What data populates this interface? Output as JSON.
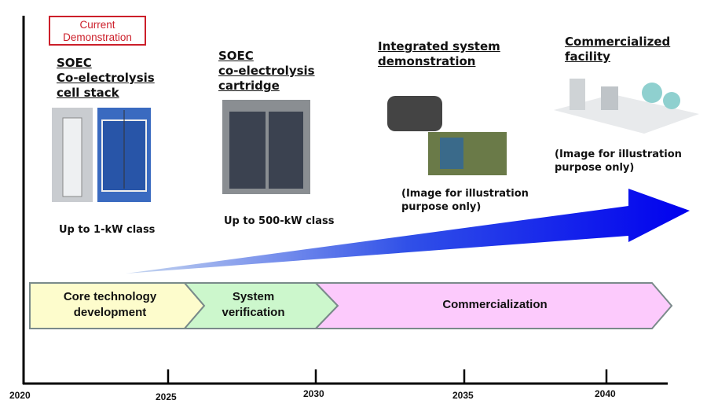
{
  "badge": "Current Demonstration",
  "stages": [
    {
      "title_lines": [
        "SOEC",
        "Co-electrolysis",
        "cell stack"
      ],
      "caption": "Up to 1-kW class"
    },
    {
      "title_lines": [
        "SOEC",
        "co-electrolysis",
        "cartridge"
      ],
      "caption": "Up to 500-kW class"
    },
    {
      "title_lines": [
        "Integrated system",
        "demonstration"
      ],
      "caption_lines": [
        "(Image for illustration",
        "purpose only)"
      ]
    },
    {
      "title_lines": [
        "Commercialized",
        "facility"
      ],
      "caption_lines": [
        "(Image for illustration",
        "purpose only)"
      ]
    }
  ],
  "phases": [
    {
      "lines": [
        "Core technology",
        "development"
      ],
      "color": "#fdfccc"
    },
    {
      "lines": [
        "System",
        "verification"
      ],
      "color": "#ccf7cc"
    },
    {
      "lines": [
        "Commercialization"
      ],
      "color": "#fccafc"
    }
  ],
  "years": [
    "2020",
    "2025",
    "2030",
    "2035",
    "2040"
  ],
  "colors": {
    "badge": "#cc1f2a",
    "arrow": "#0000ee"
  }
}
